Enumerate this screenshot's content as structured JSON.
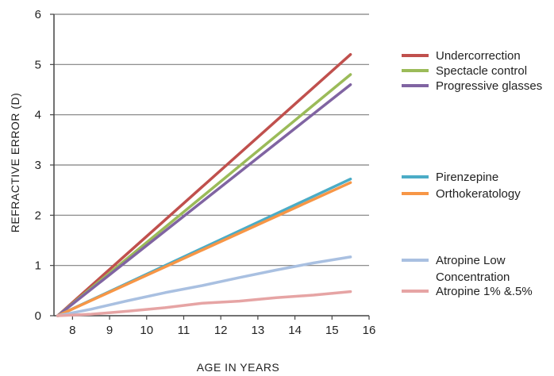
{
  "chart_data": {
    "type": "line",
    "title": "",
    "xlabel": "AGE IN YEARS",
    "ylabel": "REFRACTIVE ERROR (D)",
    "xlim": [
      7.5,
      16
    ],
    "ylim": [
      0,
      6
    ],
    "x_ticks": [
      "8",
      "9",
      "10",
      "11",
      "12",
      "13",
      "14",
      "15",
      "16"
    ],
    "y_ticks": [
      "0",
      "1",
      "2",
      "3",
      "4",
      "5",
      "6"
    ],
    "grid": "horizontal",
    "legend_position": "right",
    "series": [
      {
        "name": "Undercorrection",
        "color": "#c0504d",
        "x": [
          7.6,
          15.5
        ],
        "y": [
          0,
          5.2
        ]
      },
      {
        "name": "Spectacle control",
        "color": "#9bbb59",
        "x": [
          7.6,
          15.5
        ],
        "y": [
          0,
          4.8
        ]
      },
      {
        "name": "Progressive glasses",
        "color": "#8064a2",
        "x": [
          7.6,
          15.5
        ],
        "y": [
          0,
          4.6
        ]
      },
      {
        "name": "Pirenzepine",
        "color": "#4bacc6",
        "x": [
          7.6,
          15.5
        ],
        "y": [
          0,
          2.72
        ]
      },
      {
        "name": "Orthokeratology",
        "color": "#f79646",
        "x": [
          7.6,
          15.5
        ],
        "y": [
          0,
          2.65
        ]
      },
      {
        "name": "Atropine Low Concentration",
        "legend_lines": [
          "Atropine Low",
          "Concentration"
        ],
        "color": "#a9c0e1",
        "x": [
          7.6,
          8.5,
          9.5,
          10.5,
          11.5,
          12.5,
          13.5,
          14.5,
          15.5
        ],
        "y": [
          0,
          0.13,
          0.3,
          0.46,
          0.6,
          0.76,
          0.91,
          1.05,
          1.17
        ]
      },
      {
        "name": "Atropine 1% &.5%",
        "color": "#e6a4a4",
        "x": [
          7.6,
          8.5,
          9.5,
          10.5,
          11.5,
          12.5,
          13.5,
          14.5,
          15.5
        ],
        "y": [
          0,
          0.03,
          0.09,
          0.16,
          0.25,
          0.29,
          0.36,
          0.41,
          0.48
        ]
      }
    ]
  }
}
